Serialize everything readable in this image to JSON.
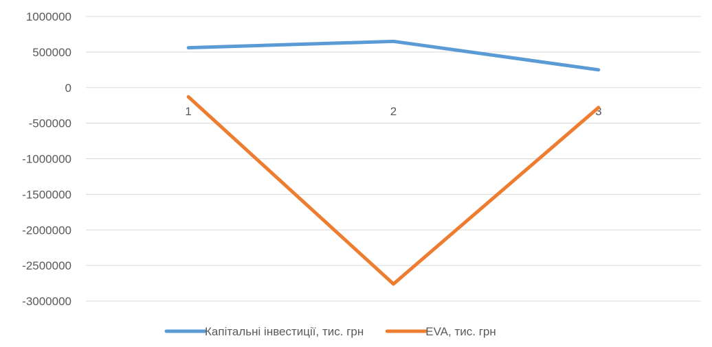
{
  "chart_data": {
    "type": "line",
    "categories": [
      "1",
      "2",
      "3"
    ],
    "series": [
      {
        "name": "Капітальні інвестиції, тис. грн",
        "color": "#5B9BD5",
        "values": [
          560000,
          650000,
          250000
        ]
      },
      {
        "name": "EVA, тис. грн",
        "color": "#ED7D31",
        "values": [
          -130000,
          -2760000,
          -280000
        ]
      }
    ],
    "ylim": [
      -3000000,
      1000000
    ],
    "ytick_step": 500000,
    "yticks": [
      "1000000",
      "500000",
      "0",
      "-500000",
      "-1000000",
      "-1500000",
      "-2000000",
      "-2500000",
      "-3000000"
    ],
    "grid": true,
    "legend": "bottom"
  }
}
